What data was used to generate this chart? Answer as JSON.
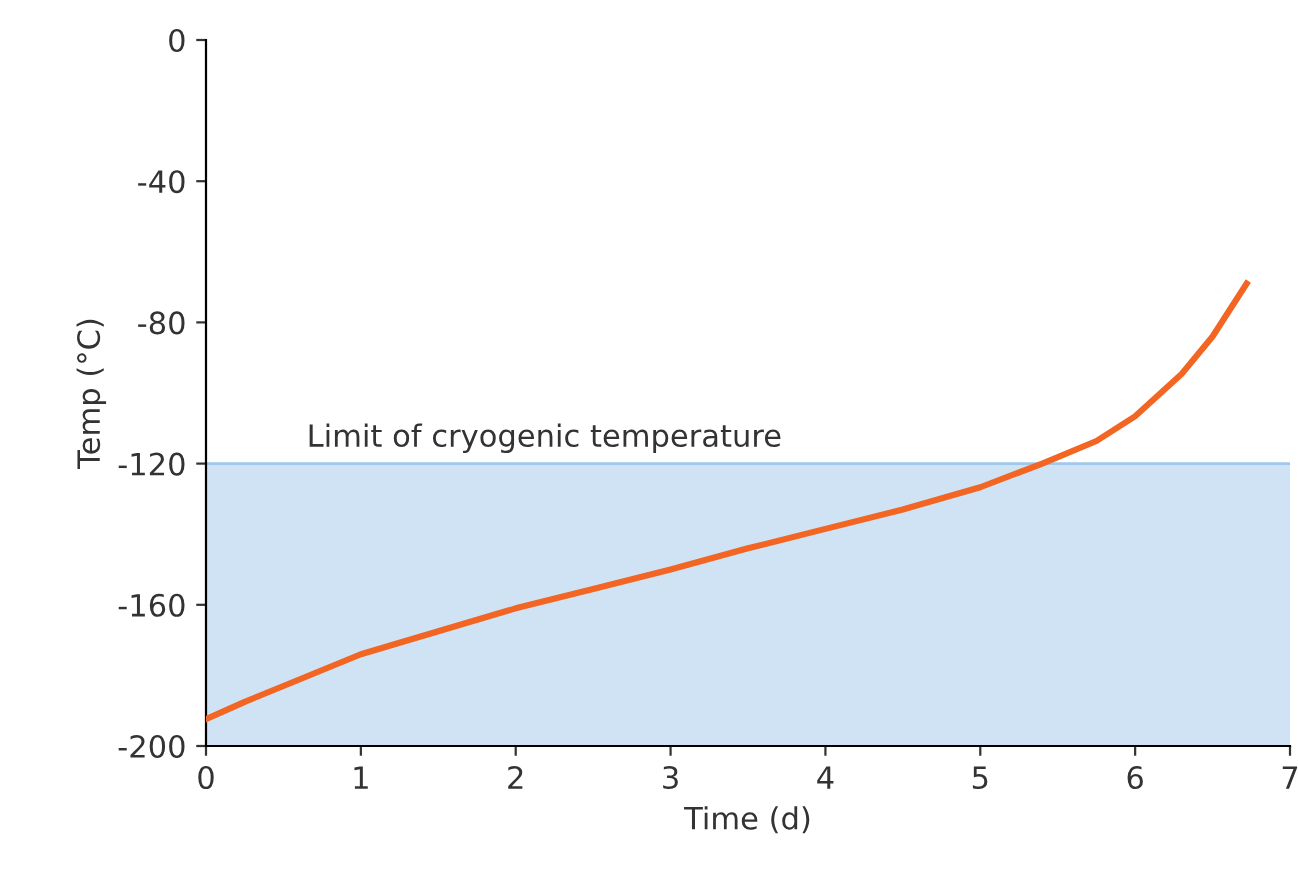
{
  "chart_data": {
    "type": "line",
    "xlabel": "Time (d)",
    "ylabel": "Temp (°C)",
    "series": [
      {
        "color": "#f26522",
        "x": [
          0,
          0.25,
          0.5,
          1,
          1.5,
          2,
          2.5,
          3,
          3.5,
          4,
          4.5,
          5,
          5.4,
          5.75,
          6,
          6.3,
          6.5,
          6.72
        ],
        "values": [
          -192.4,
          -187.5,
          -183,
          -174,
          -167.5,
          -161,
          -155.5,
          -150,
          -144,
          -138.5,
          -133,
          -126.7,
          -120,
          -113.6,
          -106.6,
          -94.6,
          -84,
          -69
        ]
      }
    ],
    "xlim": [
      0,
      7
    ],
    "xticks": [
      0,
      1,
      2,
      3,
      4,
      5,
      6,
      7
    ],
    "ylim": [
      -200,
      0
    ],
    "yticks": [
      -200,
      -160,
      -120,
      -80,
      -40,
      0
    ],
    "bands": [
      {
        "axis": "y",
        "from": -200,
        "to": -120,
        "color": "#cfe3f5"
      }
    ],
    "ref_lines": [
      {
        "axis": "y",
        "value": -120,
        "label": "Limit of cryogenic temperature",
        "color": "#9fc8ec"
      }
    ],
    "grid": false,
    "legend": false,
    "marker": "none",
    "line_style": "solid"
  }
}
